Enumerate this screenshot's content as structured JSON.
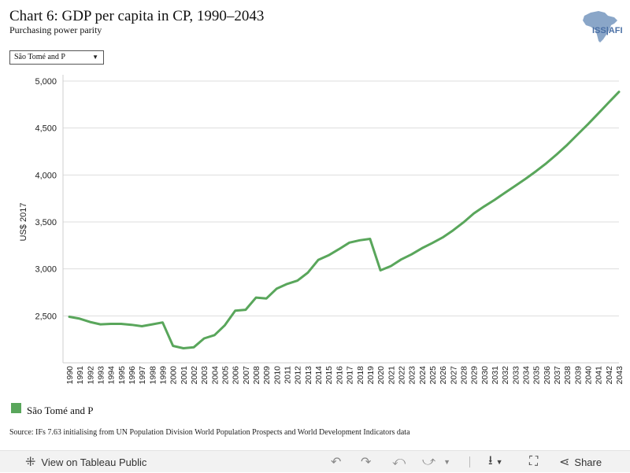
{
  "header": {
    "title": "Chart 6: GDP per capita in CP, 1990–2043",
    "subtitle": "Purchasing power parity",
    "logo_text": "ISS|AFI"
  },
  "filter": {
    "selected": "São Tomé and P"
  },
  "legend": {
    "label": "São Tomé and P"
  },
  "source": "Source: IFs 7.63 initialising from UN Population Division World Population Prospects and World Development Indicators data",
  "toolbar": {
    "view_label": "View on Tableau Public",
    "share_label": "Share"
  },
  "colors": {
    "series": "#59a65b",
    "gridline": "#dddddd",
    "logo": "#8aa6c8"
  },
  "chart_data": {
    "type": "line",
    "title": "Chart 6: GDP per capita in CP, 1990–2043",
    "subtitle": "Purchasing power parity",
    "xlabel": "",
    "ylabel": "US$ 2017",
    "ylim": [
      2000,
      5000
    ],
    "yticks": [
      2500,
      3000,
      3500,
      4000,
      4500,
      5000
    ],
    "grid": true,
    "legend_position": "bottom-left",
    "x": [
      1990,
      1991,
      1992,
      1993,
      1994,
      1995,
      1996,
      1997,
      1998,
      1999,
      2000,
      2001,
      2002,
      2003,
      2004,
      2005,
      2006,
      2007,
      2008,
      2009,
      2010,
      2011,
      2012,
      2013,
      2014,
      2015,
      2016,
      2017,
      2018,
      2019,
      2020,
      2021,
      2022,
      2023,
      2024,
      2025,
      2026,
      2027,
      2028,
      2029,
      2030,
      2031,
      2032,
      2033,
      2034,
      2035,
      2036,
      2037,
      2038,
      2039,
      2040,
      2041,
      2042,
      2043
    ],
    "series": [
      {
        "name": "São Tomé and P",
        "values": [
          2490,
          2470,
          2435,
          2410,
          2415,
          2415,
          2405,
          2390,
          2410,
          2430,
          2180,
          2155,
          2165,
          2260,
          2295,
          2400,
          2555,
          2565,
          2695,
          2685,
          2790,
          2840,
          2875,
          2960,
          3095,
          3145,
          3210,
          3280,
          3305,
          3320,
          2985,
          3030,
          3100,
          3155,
          3220,
          3275,
          3335,
          3410,
          3495,
          3590,
          3665,
          3735,
          3810,
          3885,
          3960,
          4040,
          4125,
          4220,
          4320,
          4430,
          4540,
          4655,
          4770,
          4885
        ]
      }
    ]
  }
}
